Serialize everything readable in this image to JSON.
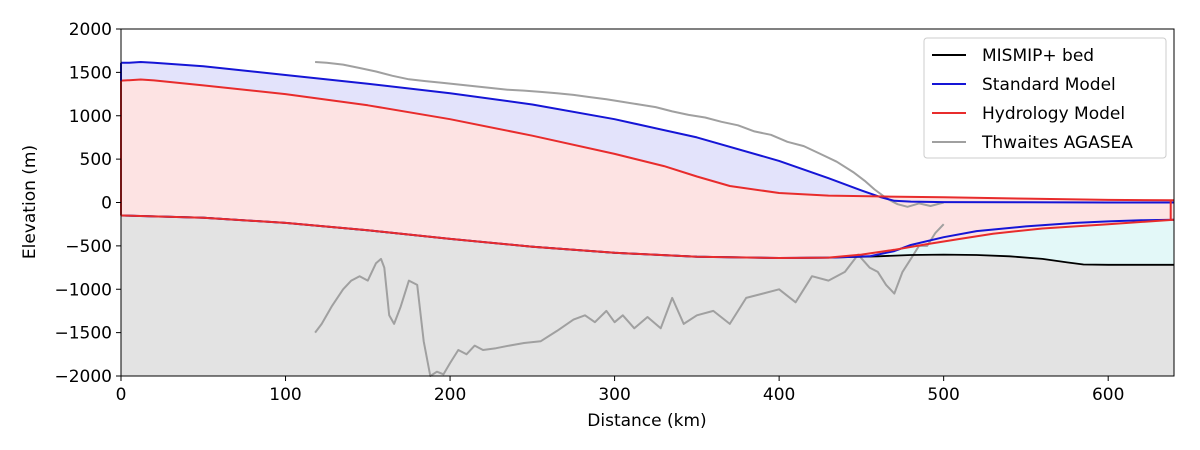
{
  "chart_data": {
    "type": "line",
    "title": "",
    "xlabel": "Distance (km)",
    "ylabel": "Elevation (m)",
    "xlim": [
      0,
      640
    ],
    "ylim": [
      -2000,
      2000
    ],
    "xticks": [
      0,
      100,
      200,
      300,
      400,
      500,
      600
    ],
    "yticks": [
      -2000,
      -1500,
      -1000,
      -500,
      0,
      500,
      1000,
      1500,
      2000
    ],
    "grid": false,
    "legend_position": "top-right",
    "colors": {
      "bed": "#000000",
      "standard": "#1515d6",
      "hydrology": "#e82c2c",
      "thwaites": "#a0a0a0",
      "bed_fill": "#e3e3e3",
      "standard_fill": "#e3e3fb",
      "hydrology_fill": "#fde3e3",
      "ocean_fill": "#e3f8f8"
    },
    "series": [
      {
        "name": "MISMIP+ bed",
        "x": [
          0,
          50,
          100,
          150,
          200,
          250,
          300,
          350,
          400,
          430,
          460,
          480,
          500,
          520,
          540,
          560,
          575,
          585,
          600,
          620,
          640
        ],
        "y": [
          -150,
          -175,
          -235,
          -320,
          -420,
          -510,
          -580,
          -625,
          -640,
          -635,
          -620,
          -605,
          -600,
          -605,
          -620,
          -650,
          -690,
          -715,
          -718,
          -718,
          -718
        ]
      },
      {
        "name": "Standard Model",
        "surface": {
          "x": [
            0,
            5,
            12,
            20,
            50,
            100,
            150,
            200,
            250,
            300,
            350,
            400,
            430,
            450,
            462,
            470,
            480,
            500,
            550,
            600,
            640
          ],
          "y": [
            1610,
            1612,
            1620,
            1612,
            1570,
            1470,
            1370,
            1260,
            1130,
            960,
            750,
            480,
            280,
            140,
            60,
            20,
            10,
            5,
            2,
            0,
            0
          ]
        },
        "base": {
          "x": [
            0,
            50,
            100,
            150,
            200,
            250,
            300,
            350,
            400,
            430,
            455,
            470,
            480,
            500,
            520,
            550,
            580,
            600,
            620,
            640
          ],
          "y": [
            -150,
            -175,
            -235,
            -320,
            -420,
            -510,
            -580,
            -625,
            -640,
            -635,
            -620,
            -560,
            -490,
            -400,
            -330,
            -275,
            -235,
            -218,
            -205,
            -200
          ]
        }
      },
      {
        "name": "Hydrology Model",
        "surface": {
          "x": [
            0,
            5,
            12,
            20,
            50,
            100,
            150,
            200,
            250,
            300,
            330,
            350,
            370,
            400,
            430,
            460,
            480,
            500,
            550,
            600,
            640
          ],
          "y": [
            1405,
            1410,
            1418,
            1408,
            1350,
            1250,
            1120,
            960,
            770,
            560,
            420,
            300,
            190,
            110,
            80,
            70,
            65,
            60,
            45,
            30,
            25
          ]
        },
        "base": {
          "x": [
            0,
            50,
            100,
            150,
            200,
            250,
            300,
            350,
            400,
            430,
            450,
            470,
            490,
            510,
            530,
            560,
            600,
            640
          ],
          "y": [
            -150,
            -175,
            -235,
            -320,
            -420,
            -510,
            -580,
            -625,
            -640,
            -635,
            -600,
            -545,
            -480,
            -420,
            -360,
            -300,
            -250,
            -200
          ]
        }
      },
      {
        "name": "Thwaites AGASEA",
        "surface": {
          "x": [
            118,
            125,
            135,
            145,
            155,
            165,
            175,
            185,
            195,
            205,
            215,
            225,
            235,
            245,
            255,
            265,
            275,
            285,
            295,
            305,
            315,
            325,
            335,
            345,
            355,
            365,
            375,
            385,
            395,
            405,
            415,
            425,
            435,
            445,
            452,
            458,
            463,
            468,
            472,
            478,
            485,
            492,
            500
          ],
          "y": [
            1620,
            1610,
            1590,
            1550,
            1510,
            1460,
            1420,
            1400,
            1380,
            1360,
            1340,
            1320,
            1300,
            1290,
            1275,
            1260,
            1240,
            1215,
            1190,
            1160,
            1130,
            1100,
            1050,
            1010,
            980,
            930,
            890,
            820,
            780,
            700,
            650,
            560,
            470,
            350,
            250,
            150,
            80,
            20,
            -20,
            -50,
            -10,
            -40,
            0
          ]
        },
        "bed": {
          "x": [
            118,
            122,
            128,
            135,
            140,
            145,
            150,
            155,
            158,
            160,
            163,
            166,
            170,
            175,
            180,
            184,
            188,
            192,
            196,
            200,
            205,
            210,
            215,
            220,
            228,
            236,
            245,
            255,
            265,
            275,
            282,
            288,
            295,
            300,
            305,
            312,
            320,
            328,
            335,
            342,
            350,
            360,
            370,
            380,
            390,
            400,
            410,
            420,
            430,
            440,
            448,
            455,
            460,
            465,
            470,
            475,
            480,
            485,
            490,
            495,
            500
          ],
          "y": [
            -1500,
            -1400,
            -1200,
            -1000,
            -900,
            -850,
            -900,
            -700,
            -650,
            -750,
            -1300,
            -1400,
            -1200,
            -900,
            -950,
            -1600,
            -2000,
            -1950,
            -1980,
            -1850,
            -1700,
            -1750,
            -1650,
            -1700,
            -1680,
            -1650,
            -1620,
            -1600,
            -1480,
            -1350,
            -1300,
            -1380,
            -1250,
            -1380,
            -1300,
            -1450,
            -1320,
            -1450,
            -1100,
            -1400,
            -1300,
            -1250,
            -1400,
            -1100,
            -1050,
            -1000,
            -1150,
            -850,
            -900,
            -800,
            -600,
            -750,
            -800,
            -950,
            -1050,
            -800,
            -650,
            -500,
            -500,
            -350,
            -250
          ]
        }
      }
    ]
  }
}
